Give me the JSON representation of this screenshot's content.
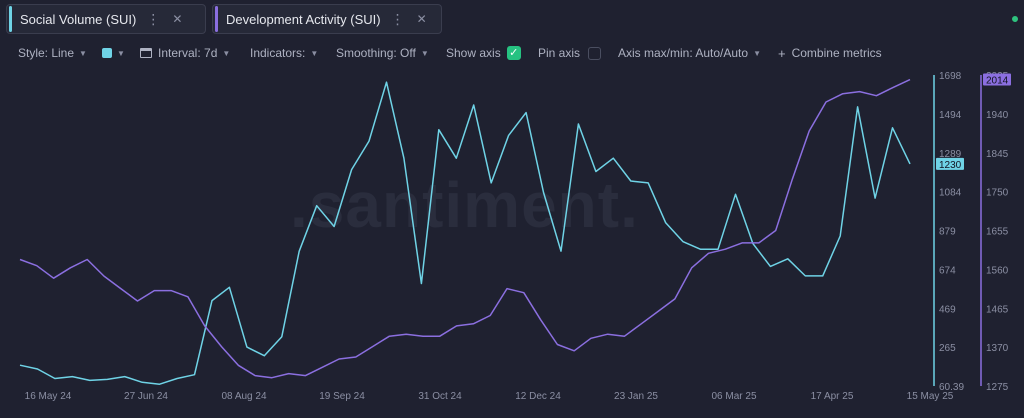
{
  "tabs": [
    {
      "label": "Social Volume (SUI)",
      "color": "#6fd3e6",
      "menu_icon": "more-vertical-icon",
      "close_icon": "close-icon"
    },
    {
      "label": "Development Activity (SUI)",
      "color": "#8b6fe0",
      "menu_icon": "more-vertical-icon",
      "close_icon": "close-icon"
    }
  ],
  "toolbar": {
    "style": "Style: Line",
    "interval": "Interval: 7d",
    "indicators": "Indicators:",
    "smoothing": "Smoothing: Off",
    "show_axis": "Show axis",
    "show_axis_checked": true,
    "pin_axis": "Pin axis",
    "pin_axis_checked": false,
    "axis_maxmin": "Axis max/min: Auto/Auto",
    "combine": "Combine metrics"
  },
  "watermark": ".santiment.",
  "chart_data": {
    "type": "line",
    "x_labels": [
      "16 May 24",
      "27 Jun 24",
      "08 Aug 24",
      "19 Sep 24",
      "31 Oct 24",
      "12 Dec 24",
      "23 Jan 25",
      "06 Mar 25",
      "17 Apr 25",
      "15 May 25"
    ],
    "series": [
      {
        "name": "Social Volume (SUI)",
        "color": "#6fd3e6",
        "axis": "left",
        "ylim": [
          60.39,
          1698
        ],
        "ticks": [
          "1698",
          "1494",
          "1289",
          "1084",
          "879",
          "674",
          "469",
          "265",
          "60.39"
        ],
        "current_label": "1230",
        "values": [
          170,
          150,
          100,
          110,
          90,
          95,
          110,
          80,
          70,
          100,
          120,
          510,
          580,
          265,
          220,
          320,
          770,
          1010,
          900,
          1200,
          1350,
          1660,
          1260,
          600,
          1410,
          1260,
          1540,
          1130,
          1380,
          1500,
          1080,
          770,
          1440,
          1190,
          1260,
          1140,
          1130,
          920,
          820,
          780,
          780,
          1070,
          810,
          690,
          730,
          640,
          640,
          850,
          1530,
          1050,
          1420,
          1230
        ]
      },
      {
        "name": "Development Activity (SUI)",
        "color": "#8b6fe0",
        "axis": "right",
        "ylim": [
          1275,
          2025
        ],
        "ticks": [
          "2025",
          "1940",
          "1845",
          "1750",
          "1655",
          "1560",
          "1465",
          "1370",
          "1275"
        ],
        "current_label": "2014",
        "values": [
          1580,
          1565,
          1535,
          1560,
          1580,
          1540,
          1510,
          1480,
          1505,
          1505,
          1490,
          1420,
          1370,
          1325,
          1300,
          1295,
          1305,
          1300,
          1320,
          1340,
          1345,
          1370,
          1395,
          1400,
          1395,
          1395,
          1420,
          1425,
          1445,
          1510,
          1500,
          1435,
          1375,
          1360,
          1390,
          1400,
          1395,
          1425,
          1455,
          1485,
          1560,
          1595,
          1605,
          1620,
          1620,
          1650,
          1775,
          1890,
          1960,
          1980,
          1985,
          1975,
          1995,
          2014
        ]
      }
    ]
  }
}
